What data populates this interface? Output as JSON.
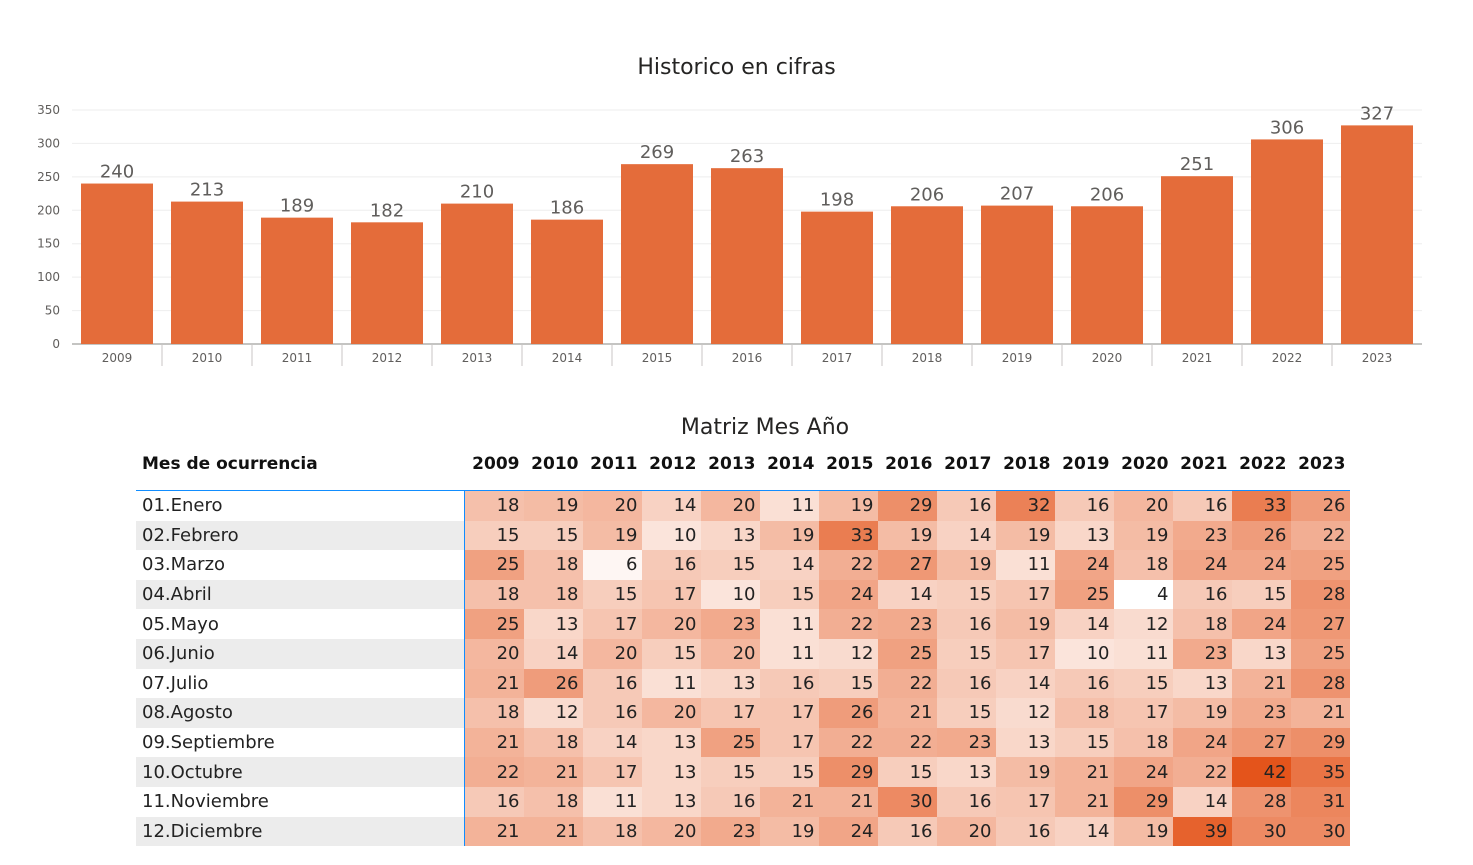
{
  "chart_data": [
    {
      "type": "bar",
      "title": "Historico en cifras",
      "categories": [
        "2009",
        "2010",
        "2011",
        "2012",
        "2013",
        "2014",
        "2015",
        "2016",
        "2017",
        "2018",
        "2019",
        "2020",
        "2021",
        "2022",
        "2023"
      ],
      "values": [
        240,
        213,
        189,
        182,
        210,
        186,
        269,
        263,
        198,
        206,
        207,
        206,
        251,
        306,
        327
      ],
      "ylim": [
        0,
        350
      ],
      "yticks": [
        "0",
        "50",
        "100",
        "150",
        "200",
        "250",
        "300",
        "350"
      ],
      "xlabel": "",
      "ylabel": "",
      "grid": true,
      "bar_color": "#e46c3a",
      "data_labels": true
    },
    {
      "type": "heatmap",
      "title": "Matriz Mes Año",
      "row_header": "Mes de ocurrencia",
      "columns": [
        "2009",
        "2010",
        "2011",
        "2012",
        "2013",
        "2014",
        "2015",
        "2016",
        "2017",
        "2018",
        "2019",
        "2020",
        "2021",
        "2022",
        "2023"
      ],
      "rows": [
        "01.Enero",
        "02.Febrero",
        "03.Marzo",
        "04.Abril",
        "05.Mayo",
        "06.Junio",
        "07.Julio",
        "08.Agosto",
        "09.Septiembre",
        "10.Octubre",
        "11.Noviembre",
        "12.Diciembre"
      ],
      "values": [
        [
          18,
          19,
          20,
          14,
          20,
          11,
          19,
          29,
          16,
          32,
          16,
          20,
          16,
          33,
          26
        ],
        [
          15,
          15,
          19,
          10,
          13,
          19,
          33,
          19,
          14,
          19,
          13,
          19,
          23,
          26,
          22
        ],
        [
          25,
          18,
          6,
          16,
          15,
          14,
          22,
          27,
          19,
          11,
          24,
          18,
          24,
          24,
          25
        ],
        [
          18,
          18,
          15,
          17,
          10,
          15,
          24,
          14,
          15,
          17,
          25,
          4,
          16,
          15,
          28
        ],
        [
          25,
          13,
          17,
          20,
          23,
          11,
          22,
          23,
          16,
          19,
          14,
          12,
          18,
          24,
          27
        ],
        [
          20,
          14,
          20,
          15,
          20,
          11,
          12,
          25,
          15,
          17,
          10,
          11,
          23,
          13,
          25
        ],
        [
          21,
          26,
          16,
          11,
          13,
          16,
          15,
          22,
          16,
          14,
          16,
          15,
          13,
          21,
          28
        ],
        [
          18,
          12,
          16,
          20,
          17,
          17,
          26,
          21,
          15,
          12,
          18,
          17,
          19,
          23,
          21
        ],
        [
          21,
          18,
          14,
          13,
          25,
          17,
          22,
          22,
          23,
          13,
          15,
          18,
          24,
          27,
          29
        ],
        [
          22,
          21,
          17,
          13,
          15,
          15,
          29,
          15,
          13,
          19,
          21,
          24,
          22,
          42,
          35
        ],
        [
          16,
          18,
          11,
          13,
          16,
          21,
          21,
          30,
          16,
          17,
          21,
          29,
          14,
          28,
          31
        ],
        [
          21,
          21,
          18,
          20,
          23,
          19,
          24,
          16,
          20,
          16,
          14,
          19,
          39,
          30,
          30
        ]
      ],
      "color_low": "#ffffff",
      "color_high": "#e4541b"
    }
  ]
}
